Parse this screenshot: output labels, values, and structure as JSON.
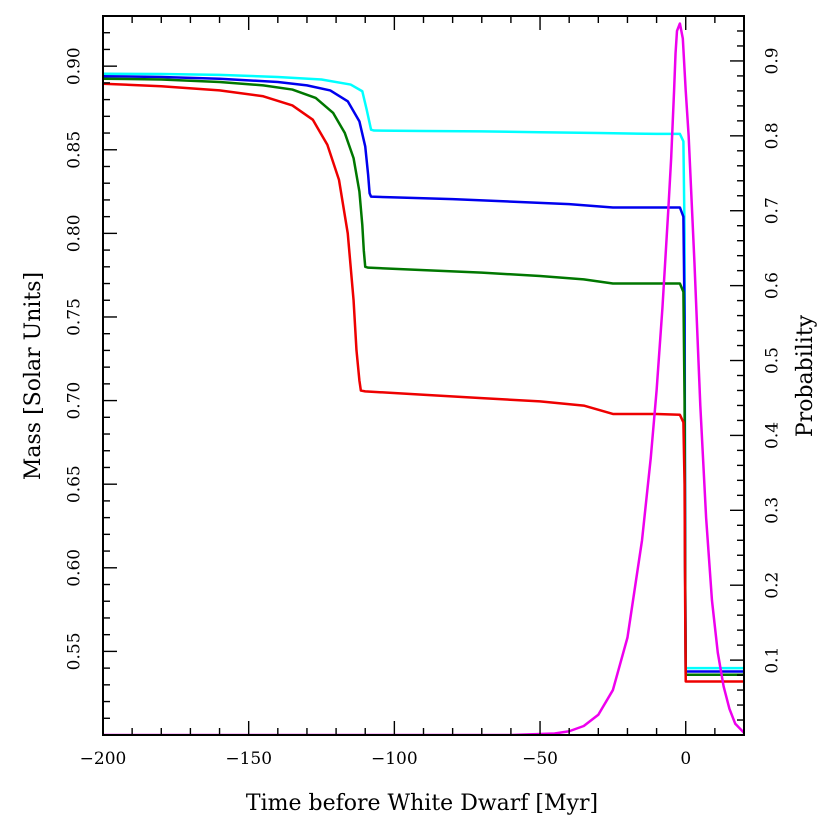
{
  "chart_data": {
    "type": "line",
    "xlabel": "Time before White Dwarf [Myr]",
    "ylabel": "Mass [Solar Units]",
    "y2label": "Probability",
    "xlim": [
      -200,
      20
    ],
    "ylim": [
      0.5,
      0.93
    ],
    "y2lim": [
      0,
      0.96
    ],
    "x_ticks": [
      -200,
      -150,
      -100,
      -50,
      0
    ],
    "x_tick_labels": [
      "−200",
      "−150",
      "−100",
      "−50",
      "0"
    ],
    "y_ticks": [
      0.55,
      0.6,
      0.65,
      0.7,
      0.75,
      0.8,
      0.85,
      0.9
    ],
    "y_tick_labels": [
      "0.55",
      "0.60",
      "0.65",
      "0.70",
      "0.75",
      "0.80",
      "0.85",
      "0.90"
    ],
    "y2_ticks": [
      0.1,
      0.2,
      0.3,
      0.4,
      0.5,
      0.6,
      0.7,
      0.8,
      0.9
    ],
    "y2_tick_labels": [
      "0.1",
      "0.2",
      "0.3",
      "0.4",
      "0.5",
      "0.6",
      "0.7",
      "0.8",
      "0.9"
    ],
    "grid": false,
    "series": [
      {
        "color": "#00ffff",
        "axis": "left",
        "points": [
          [
            -200,
            0.8955
          ],
          [
            -180,
            0.8953
          ],
          [
            -160,
            0.8948
          ],
          [
            -140,
            0.8935
          ],
          [
            -125,
            0.892
          ],
          [
            -115,
            0.889
          ],
          [
            -111,
            0.885
          ],
          [
            -109.5,
            0.874
          ],
          [
            -108.5,
            0.866
          ],
          [
            -108,
            0.862
          ],
          [
            -107,
            0.8615
          ],
          [
            -90,
            0.8612
          ],
          [
            -70,
            0.861
          ],
          [
            -50,
            0.8605
          ],
          [
            -30,
            0.86
          ],
          [
            -10,
            0.8595
          ],
          [
            -2,
            0.8595
          ],
          [
            -0.8,
            0.855
          ],
          [
            -0.4,
            0.8
          ],
          [
            -0.2,
            0.6
          ],
          [
            0,
            0.54
          ],
          [
            20,
            0.54
          ]
        ]
      },
      {
        "color": "#0000ee",
        "axis": "left",
        "points": [
          [
            -200,
            0.894
          ],
          [
            -180,
            0.8935
          ],
          [
            -160,
            0.8925
          ],
          [
            -140,
            0.8905
          ],
          [
            -130,
            0.8885
          ],
          [
            -122,
            0.8855
          ],
          [
            -116,
            0.879
          ],
          [
            -112,
            0.867
          ],
          [
            -110,
            0.852
          ],
          [
            -109,
            0.835
          ],
          [
            -108.5,
            0.824
          ],
          [
            -108,
            0.822
          ],
          [
            -100,
            0.8215
          ],
          [
            -80,
            0.8205
          ],
          [
            -60,
            0.819
          ],
          [
            -40,
            0.8175
          ],
          [
            -25,
            0.8155
          ],
          [
            -10,
            0.8155
          ],
          [
            -2,
            0.8155
          ],
          [
            -0.8,
            0.81
          ],
          [
            -0.4,
            0.75
          ],
          [
            -0.2,
            0.6
          ],
          [
            0,
            0.538
          ],
          [
            20,
            0.538
          ]
        ]
      },
      {
        "color": "#007700",
        "axis": "left",
        "points": [
          [
            -200,
            0.8925
          ],
          [
            -180,
            0.892
          ],
          [
            -160,
            0.8905
          ],
          [
            -145,
            0.8885
          ],
          [
            -135,
            0.886
          ],
          [
            -127,
            0.881
          ],
          [
            -121,
            0.872
          ],
          [
            -117,
            0.86
          ],
          [
            -114,
            0.845
          ],
          [
            -112,
            0.825
          ],
          [
            -111,
            0.805
          ],
          [
            -110.5,
            0.79
          ],
          [
            -110,
            0.78
          ],
          [
            -109,
            0.7795
          ],
          [
            -90,
            0.778
          ],
          [
            -70,
            0.7765
          ],
          [
            -50,
            0.7745
          ],
          [
            -35,
            0.7725
          ],
          [
            -25,
            0.77
          ],
          [
            -10,
            0.77
          ],
          [
            -2,
            0.77
          ],
          [
            -0.8,
            0.765
          ],
          [
            -0.4,
            0.7
          ],
          [
            -0.2,
            0.6
          ],
          [
            0,
            0.536
          ],
          [
            20,
            0.536
          ]
        ]
      },
      {
        "color": "#ee0000",
        "axis": "left",
        "points": [
          [
            -200,
            0.8895
          ],
          [
            -180,
            0.888
          ],
          [
            -160,
            0.8855
          ],
          [
            -145,
            0.882
          ],
          [
            -135,
            0.8765
          ],
          [
            -128,
            0.868
          ],
          [
            -123,
            0.853
          ],
          [
            -119,
            0.832
          ],
          [
            -116,
            0.8
          ],
          [
            -114,
            0.76
          ],
          [
            -113,
            0.73
          ],
          [
            -112,
            0.712
          ],
          [
            -111.5,
            0.706
          ],
          [
            -110,
            0.7055
          ],
          [
            -90,
            0.7035
          ],
          [
            -70,
            0.7015
          ],
          [
            -50,
            0.6995
          ],
          [
            -35,
            0.697
          ],
          [
            -25,
            0.692
          ],
          [
            -10,
            0.692
          ],
          [
            -2,
            0.6915
          ],
          [
            -0.8,
            0.687
          ],
          [
            -0.4,
            0.65
          ],
          [
            -0.2,
            0.58
          ],
          [
            0,
            0.532
          ],
          [
            20,
            0.532
          ]
        ]
      },
      {
        "color": "#ee00ee",
        "axis": "right",
        "points": [
          [
            -200,
            0.0
          ],
          [
            -60,
            0.0
          ],
          [
            -45,
            0.002
          ],
          [
            -40,
            0.005
          ],
          [
            -35,
            0.012
          ],
          [
            -30,
            0.027
          ],
          [
            -25,
            0.06
          ],
          [
            -20,
            0.13
          ],
          [
            -15,
            0.26
          ],
          [
            -12,
            0.37
          ],
          [
            -10,
            0.46
          ],
          [
            -8,
            0.57
          ],
          [
            -6,
            0.7
          ],
          [
            -5,
            0.77
          ],
          [
            -4,
            0.86
          ],
          [
            -3.5,
            0.91
          ],
          [
            -3,
            0.94
          ],
          [
            -2,
            0.95
          ],
          [
            -1,
            0.93
          ],
          [
            0,
            0.86
          ],
          [
            1,
            0.8
          ],
          [
            3,
            0.63
          ],
          [
            5,
            0.44
          ],
          [
            7,
            0.29
          ],
          [
            9,
            0.18
          ],
          [
            11,
            0.11
          ],
          [
            13,
            0.065
          ],
          [
            15,
            0.035
          ],
          [
            17,
            0.015
          ],
          [
            20,
            0.003
          ]
        ]
      }
    ]
  }
}
